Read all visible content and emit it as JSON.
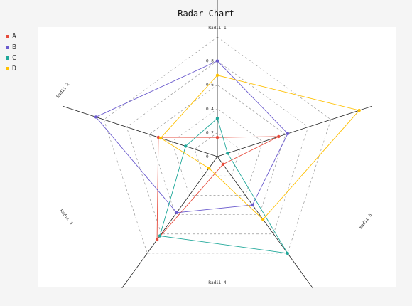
{
  "chart_data": {
    "type": "radar",
    "title": "Radar Chart",
    "axes": [
      "Radii 1",
      "Radii 2",
      "Radii 3",
      "Radii 4",
      "Radii 5"
    ],
    "radial_ticks": [
      "0",
      "0.2",
      "0.4",
      "0.6",
      "0.8"
    ],
    "series": [
      {
        "name": "A",
        "color": "#e64b3c",
        "values": [
          0.16,
          0.52,
          0.86,
          0.08,
          0.54
        ]
      },
      {
        "name": "B",
        "color": "#6a5acd",
        "values": [
          0.8,
          1.07,
          0.58,
          0.5,
          0.62
        ]
      },
      {
        "name": "C",
        "color": "#20a89a",
        "values": [
          0.32,
          0.28,
          0.82,
          1.0,
          0.09
        ]
      },
      {
        "name": "D",
        "color": "#ffc000",
        "values": [
          0.68,
          0.5,
          0.12,
          0.65,
          1.25
        ]
      }
    ]
  }
}
